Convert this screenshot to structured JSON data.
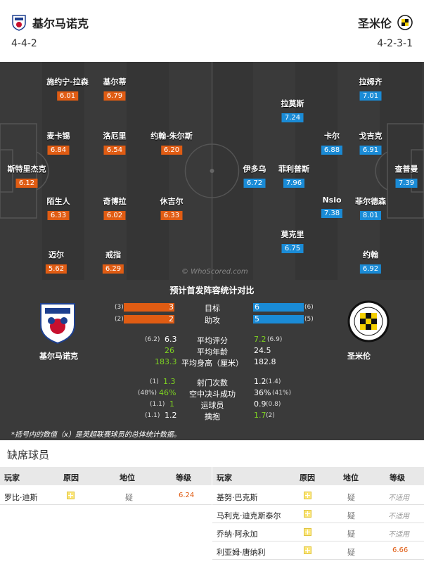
{
  "header": {
    "home_team": "基尔马诺克",
    "away_team": "圣米伦",
    "home_formation": "4-4-2",
    "away_formation": "4-2-3-1"
  },
  "pitch": {
    "watermark": "© WhoScored.com",
    "home_players": [
      {
        "name": "施约宁-拉森",
        "rating": "6.01"
      },
      {
        "name": "基尔蒂",
        "rating": "6.79"
      },
      {
        "name": "麦卡锡",
        "rating": "6.84"
      },
      {
        "name": "洛厄里",
        "rating": "6.54"
      },
      {
        "name": "约翰-朱尔斯",
        "rating": "6.20"
      },
      {
        "name": "斯特里杰克",
        "rating": "6.12"
      },
      {
        "name": "陌生人",
        "rating": "6.33"
      },
      {
        "name": "奇博拉",
        "rating": "6.02"
      },
      {
        "name": "休吉尔",
        "rating": "6.33"
      },
      {
        "name": "迈尔",
        "rating": "5.62"
      },
      {
        "name": "戒指",
        "rating": "6.29"
      }
    ],
    "away_players": [
      {
        "name": "拉姆齐",
        "rating": "7.01"
      },
      {
        "name": "拉莫斯",
        "rating": "7.24"
      },
      {
        "name": "卡尔",
        "rating": "6.88"
      },
      {
        "name": "戈吉克",
        "rating": "6.91"
      },
      {
        "name": "伊多乌",
        "rating": "6.72"
      },
      {
        "name": "菲利普斯",
        "rating": "7.96"
      },
      {
        "name": "查普曼",
        "rating": "7.39"
      },
      {
        "name": "Nsio",
        "rating": "7.38"
      },
      {
        "name": "菲尔德森",
        "rating": "8.01"
      },
      {
        "name": "莫克里",
        "rating": "6.75"
      },
      {
        "name": "约翰",
        "rating": "6.92"
      }
    ]
  },
  "stats": {
    "title": "预计首发阵容统计对比",
    "home_team": "基尔马诺克",
    "away_team": "圣米伦",
    "goals": {
      "label": "目标",
      "home": 3,
      "away": 6,
      "home_prev": "(3)",
      "away_prev": "(6)"
    },
    "assists": {
      "label": "助攻",
      "home": 2,
      "away": 5,
      "home_prev": "(2)",
      "away_prev": "(5)"
    },
    "rows": [
      {
        "label": "平均评分",
        "home": "6.3",
        "home_prev": "(6.2)",
        "away": "7.2",
        "away_prev": "(6.9)",
        "green": "away"
      },
      {
        "label": "平均年龄",
        "home": "26",
        "home_prev": "",
        "away": "24.5",
        "away_prev": "",
        "green": "home"
      },
      {
        "label": "平均身高（厘米）",
        "home": "183.3",
        "home_prev": "",
        "away": "182.8",
        "away_prev": "",
        "green": "home"
      },
      {
        "label": "射门次数",
        "home": "1.3",
        "home_prev": "(1)",
        "away": "1.2",
        "away_prev": "(1.4)",
        "green": "home"
      },
      {
        "label": "空中决斗成功",
        "home": "46%",
        "home_prev": "(48%)",
        "away": "36%",
        "away_prev": "(41%)",
        "green": "home"
      },
      {
        "label": "运球员",
        "home": "1",
        "home_prev": "(1.1)",
        "away": "0.9",
        "away_prev": "(0.8)",
        "green": "home"
      },
      {
        "label": "擒抱",
        "home": "1.2",
        "home_prev": "(1.1)",
        "away": "1.7",
        "away_prev": "(2)",
        "green": "away"
      }
    ],
    "footnote": "*括号内的数值（x）是英超联赛球员的总体统计数据。"
  },
  "injuries": {
    "title": "缺席球员",
    "headers": {
      "player": "玩家",
      "reason": "原因",
      "status": "地位",
      "rating": "等级"
    },
    "home": [
      {
        "player": "罗比·迪斯",
        "status": "疑",
        "rating": "6.24"
      }
    ],
    "away": [
      {
        "player": "基努·巴克斯",
        "status": "疑",
        "rating": "不适用"
      },
      {
        "player": "马利克·迪克斯泰尔",
        "status": "疑",
        "rating": "不适用"
      },
      {
        "player": "乔纳·阿永加",
        "status": "疑",
        "rating": "不适用"
      },
      {
        "player": "利亚姆·唐纳利",
        "status": "疑",
        "rating": "6.66"
      }
    ]
  },
  "colors": {
    "home": "#e05c13",
    "away": "#1a8bd6",
    "green": "#7ed321"
  }
}
